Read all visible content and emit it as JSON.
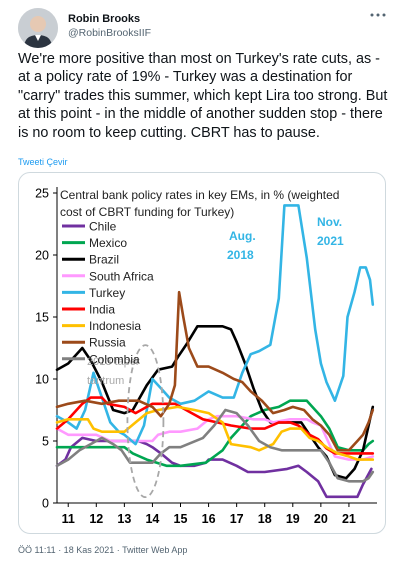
{
  "tweet": {
    "author": {
      "display_name": "Robin Brooks",
      "handle": "@RobinBrooksIIF"
    },
    "text": "We're more positive than most on Turkey's rate cuts, as - at a policy rate of 19% - Turkey was a destination for \"carry\" trades this summer, which kept Lira too strong. But at this point - in the middle of another sudden stop - there is no room to keep cutting. CBRT has to pause.",
    "translate_label": "Tweeti Çevir",
    "timestamp": "ÖÖ 11:11 · 18 Kas 2021 · Twitter Web App"
  },
  "colors": {
    "link": "#1d9bf0",
    "text": "#0f1419",
    "muted": "#536471",
    "border": "#cfd9de"
  },
  "chart_data": {
    "type": "line",
    "title": "Central bank policy rates in key EMs, in % (weighted cost of CBRT funding for Turkey)",
    "title_lines": [
      "Central bank policy rates in key EMs, in % (weighted",
      "cost of CBRT funding for Turkey)"
    ],
    "xlim": [
      2010.6,
      2022.0
    ],
    "ylim": [
      0,
      25
    ],
    "x_ticks": [
      {
        "v": 2011,
        "label": "11"
      },
      {
        "v": 2012,
        "label": "12"
      },
      {
        "v": 2013,
        "label": "13"
      },
      {
        "v": 2014,
        "label": "14"
      },
      {
        "v": 2015,
        "label": "15"
      },
      {
        "v": 2016,
        "label": "16"
      },
      {
        "v": 2017,
        "label": "17"
      },
      {
        "v": 2018,
        "label": "18"
      },
      {
        "v": 2019,
        "label": "19"
      },
      {
        "v": 2020,
        "label": "20"
      },
      {
        "v": 2021,
        "label": "21"
      }
    ],
    "y_ticks": [
      {
        "v": 0,
        "label": "0"
      },
      {
        "v": 5,
        "label": "5"
      },
      {
        "v": 10,
        "label": "10"
      },
      {
        "v": 15,
        "label": "15"
      },
      {
        "v": 20,
        "label": "20"
      },
      {
        "v": 25,
        "label": "25"
      }
    ],
    "grid": false,
    "legend_position": "top-left",
    "series": [
      {
        "name": "Chile",
        "color": "#7030a0",
        "points": [
          [
            2010.6,
            3.0
          ],
          [
            2010.9,
            3.5
          ],
          [
            2011.1,
            4.5
          ],
          [
            2011.5,
            5.25
          ],
          [
            2012.0,
            5.0
          ],
          [
            2012.5,
            5.0
          ],
          [
            2013.0,
            5.0
          ],
          [
            2013.5,
            5.0
          ],
          [
            2013.8,
            4.75
          ],
          [
            2014.0,
            4.5
          ],
          [
            2014.3,
            4.0
          ],
          [
            2014.7,
            3.25
          ],
          [
            2015.0,
            3.0
          ],
          [
            2015.5,
            3.0
          ],
          [
            2015.9,
            3.25
          ],
          [
            2016.0,
            3.5
          ],
          [
            2016.5,
            3.5
          ],
          [
            2017.0,
            3.0
          ],
          [
            2017.4,
            2.5
          ],
          [
            2018.0,
            2.5
          ],
          [
            2018.8,
            2.75
          ],
          [
            2019.2,
            3.0
          ],
          [
            2019.5,
            2.5
          ],
          [
            2019.9,
            1.75
          ],
          [
            2020.2,
            0.5
          ],
          [
            2020.5,
            0.5
          ],
          [
            2021.0,
            0.5
          ],
          [
            2021.3,
            0.5
          ],
          [
            2021.5,
            1.5
          ],
          [
            2021.8,
            2.75
          ]
        ]
      },
      {
        "name": "Mexico",
        "color": "#00a651",
        "points": [
          [
            2010.6,
            4.5
          ],
          [
            2011.0,
            4.5
          ],
          [
            2012.0,
            4.5
          ],
          [
            2013.0,
            4.5
          ],
          [
            2013.3,
            4.0
          ],
          [
            2013.8,
            3.5
          ],
          [
            2014.5,
            3.0
          ],
          [
            2015.0,
            3.0
          ],
          [
            2015.9,
            3.25
          ],
          [
            2016.2,
            3.75
          ],
          [
            2016.5,
            4.25
          ],
          [
            2016.8,
            5.25
          ],
          [
            2017.0,
            5.75
          ],
          [
            2017.5,
            7.0
          ],
          [
            2018.0,
            7.5
          ],
          [
            2018.5,
            7.75
          ],
          [
            2018.9,
            8.25
          ],
          [
            2019.5,
            8.25
          ],
          [
            2019.8,
            7.5
          ],
          [
            2020.0,
            7.0
          ],
          [
            2020.3,
            6.0
          ],
          [
            2020.6,
            4.5
          ],
          [
            2021.0,
            4.25
          ],
          [
            2021.5,
            4.25
          ],
          [
            2021.7,
            4.75
          ],
          [
            2021.85,
            5.0
          ]
        ]
      },
      {
        "name": "Brazil",
        "color": "#000000",
        "points": [
          [
            2010.6,
            10.75
          ],
          [
            2011.0,
            11.25
          ],
          [
            2011.5,
            12.5
          ],
          [
            2011.8,
            11.5
          ],
          [
            2012.2,
            9.75
          ],
          [
            2012.6,
            7.5
          ],
          [
            2013.0,
            7.25
          ],
          [
            2013.3,
            7.5
          ],
          [
            2013.8,
            9.5
          ],
          [
            2014.2,
            10.75
          ],
          [
            2014.7,
            11.0
          ],
          [
            2014.9,
            11.75
          ],
          [
            2015.2,
            12.75
          ],
          [
            2015.6,
            14.25
          ],
          [
            2016.0,
            14.25
          ],
          [
            2016.5,
            14.25
          ],
          [
            2016.8,
            14.0
          ],
          [
            2017.0,
            13.0
          ],
          [
            2017.3,
            11.25
          ],
          [
            2017.6,
            9.25
          ],
          [
            2017.9,
            7.5
          ],
          [
            2018.2,
            6.5
          ],
          [
            2018.8,
            6.5
          ],
          [
            2019.3,
            6.5
          ],
          [
            2019.6,
            5.5
          ],
          [
            2019.9,
            4.5
          ],
          [
            2020.2,
            3.75
          ],
          [
            2020.5,
            2.25
          ],
          [
            2020.9,
            2.0
          ],
          [
            2021.2,
            2.75
          ],
          [
            2021.5,
            4.25
          ],
          [
            2021.7,
            6.25
          ],
          [
            2021.85,
            7.75
          ]
        ]
      },
      {
        "name": "South Africa",
        "color": "#ff99ff",
        "points": [
          [
            2010.6,
            6.0
          ],
          [
            2011.0,
            5.5
          ],
          [
            2012.0,
            5.5
          ],
          [
            2012.5,
            5.0
          ],
          [
            2013.0,
            5.0
          ],
          [
            2014.0,
            5.0
          ],
          [
            2014.2,
            5.5
          ],
          [
            2014.6,
            5.75
          ],
          [
            2015.0,
            5.75
          ],
          [
            2015.6,
            6.0
          ],
          [
            2016.0,
            6.75
          ],
          [
            2016.3,
            7.0
          ],
          [
            2017.0,
            7.0
          ],
          [
            2017.6,
            6.75
          ],
          [
            2018.0,
            6.75
          ],
          [
            2018.3,
            6.5
          ],
          [
            2018.9,
            6.75
          ],
          [
            2019.5,
            6.75
          ],
          [
            2019.7,
            6.5
          ],
          [
            2020.0,
            6.25
          ],
          [
            2020.2,
            5.25
          ],
          [
            2020.5,
            3.75
          ],
          [
            2021.0,
            3.5
          ],
          [
            2021.5,
            3.5
          ],
          [
            2021.85,
            3.75
          ]
        ]
      },
      {
        "name": "Turkey",
        "color": "#33b5e5",
        "points": [
          [
            2010.6,
            7.0
          ],
          [
            2011.0,
            6.5
          ],
          [
            2011.3,
            6.0
          ],
          [
            2011.6,
            7.5
          ],
          [
            2011.9,
            10.5
          ],
          [
            2012.2,
            8.5
          ],
          [
            2012.5,
            6.5
          ],
          [
            2012.8,
            5.75
          ],
          [
            2013.0,
            5.5
          ],
          [
            2013.4,
            4.75
          ],
          [
            2013.7,
            6.25
          ],
          [
            2014.0,
            10.0
          ],
          [
            2014.3,
            9.25
          ],
          [
            2014.6,
            8.5
          ],
          [
            2015.0,
            8.0
          ],
          [
            2015.5,
            8.25
          ],
          [
            2016.0,
            9.0
          ],
          [
            2016.5,
            8.5
          ],
          [
            2016.9,
            8.5
          ],
          [
            2017.2,
            10.5
          ],
          [
            2017.5,
            12.0
          ],
          [
            2017.8,
            12.25
          ],
          [
            2018.2,
            12.75
          ],
          [
            2018.5,
            16.5
          ],
          [
            2018.7,
            24.0
          ],
          [
            2019.0,
            24.0
          ],
          [
            2019.2,
            24.0
          ],
          [
            2019.5,
            19.75
          ],
          [
            2019.8,
            14.0
          ],
          [
            2020.0,
            11.25
          ],
          [
            2020.2,
            9.75
          ],
          [
            2020.5,
            8.25
          ],
          [
            2020.8,
            10.25
          ],
          [
            2020.95,
            15.0
          ],
          [
            2021.2,
            17.0
          ],
          [
            2021.4,
            19.0
          ],
          [
            2021.6,
            19.0
          ],
          [
            2021.75,
            18.0
          ],
          [
            2021.85,
            16.0
          ]
        ]
      },
      {
        "name": "India",
        "color": "#ff0000",
        "points": [
          [
            2010.6,
            6.0
          ],
          [
            2011.0,
            6.75
          ],
          [
            2011.5,
            8.0
          ],
          [
            2011.8,
            8.5
          ],
          [
            2012.2,
            8.5
          ],
          [
            2012.4,
            8.0
          ],
          [
            2013.0,
            7.75
          ],
          [
            2013.4,
            7.25
          ],
          [
            2013.8,
            7.75
          ],
          [
            2014.0,
            8.0
          ],
          [
            2014.8,
            8.0
          ],
          [
            2015.0,
            7.75
          ],
          [
            2015.4,
            7.25
          ],
          [
            2015.8,
            6.75
          ],
          [
            2016.3,
            6.5
          ],
          [
            2016.8,
            6.25
          ],
          [
            2017.5,
            6.0
          ],
          [
            2018.0,
            6.0
          ],
          [
            2018.5,
            6.5
          ],
          [
            2018.9,
            6.5
          ],
          [
            2019.2,
            6.25
          ],
          [
            2019.6,
            5.5
          ],
          [
            2019.9,
            5.15
          ],
          [
            2020.2,
            4.4
          ],
          [
            2020.5,
            4.0
          ],
          [
            2021.0,
            4.0
          ],
          [
            2021.85,
            4.0
          ]
        ]
      },
      {
        "name": "Indonesia",
        "color": "#ffc000",
        "points": [
          [
            2010.6,
            6.5
          ],
          [
            2011.0,
            6.75
          ],
          [
            2011.7,
            6.75
          ],
          [
            2011.9,
            6.0
          ],
          [
            2012.2,
            5.75
          ],
          [
            2013.0,
            5.75
          ],
          [
            2013.4,
            6.5
          ],
          [
            2013.8,
            7.25
          ],
          [
            2014.2,
            7.5
          ],
          [
            2014.9,
            7.75
          ],
          [
            2015.5,
            7.5
          ],
          [
            2016.0,
            7.25
          ],
          [
            2016.5,
            6.5
          ],
          [
            2016.8,
            4.75
          ],
          [
            2017.5,
            4.5
          ],
          [
            2017.8,
            4.25
          ],
          [
            2018.3,
            4.75
          ],
          [
            2018.6,
            5.75
          ],
          [
            2018.9,
            6.0
          ],
          [
            2019.3,
            6.0
          ],
          [
            2019.6,
            5.25
          ],
          [
            2019.9,
            5.0
          ],
          [
            2020.2,
            4.5
          ],
          [
            2020.6,
            4.0
          ],
          [
            2021.0,
            3.75
          ],
          [
            2021.3,
            3.5
          ],
          [
            2021.85,
            3.5
          ]
        ]
      },
      {
        "name": "Russia",
        "color": "#9c4a1a",
        "points": [
          [
            2010.6,
            7.75
          ],
          [
            2011.0,
            8.0
          ],
          [
            2011.6,
            8.25
          ],
          [
            2012.2,
            8.0
          ],
          [
            2012.8,
            8.25
          ],
          [
            2013.5,
            8.25
          ],
          [
            2014.0,
            7.75
          ],
          [
            2014.3,
            7.0
          ],
          [
            2014.6,
            8.0
          ],
          [
            2014.8,
            9.5
          ],
          [
            2014.95,
            17.0
          ],
          [
            2015.1,
            15.0
          ],
          [
            2015.3,
            12.5
          ],
          [
            2015.6,
            11.0
          ],
          [
            2016.0,
            11.0
          ],
          [
            2016.5,
            10.5
          ],
          [
            2016.9,
            10.0
          ],
          [
            2017.2,
            9.75
          ],
          [
            2017.5,
            9.0
          ],
          [
            2017.9,
            8.25
          ],
          [
            2018.3,
            7.25
          ],
          [
            2018.7,
            7.5
          ],
          [
            2019.0,
            7.75
          ],
          [
            2019.4,
            7.5
          ],
          [
            2019.7,
            6.75
          ],
          [
            2020.0,
            6.25
          ],
          [
            2020.3,
            5.5
          ],
          [
            2020.6,
            4.25
          ],
          [
            2021.0,
            4.25
          ],
          [
            2021.3,
            5.0
          ],
          [
            2021.5,
            5.5
          ],
          [
            2021.7,
            6.5
          ],
          [
            2021.85,
            7.5
          ]
        ]
      },
      {
        "name": "Colombia",
        "color": "#808080",
        "points": [
          [
            2010.6,
            3.0
          ],
          [
            2011.0,
            3.5
          ],
          [
            2011.4,
            4.25
          ],
          [
            2011.8,
            4.75
          ],
          [
            2012.2,
            5.25
          ],
          [
            2012.6,
            4.75
          ],
          [
            2012.9,
            4.25
          ],
          [
            2013.2,
            3.25
          ],
          [
            2014.0,
            3.25
          ],
          [
            2014.3,
            4.0
          ],
          [
            2014.6,
            4.5
          ],
          [
            2015.0,
            4.5
          ],
          [
            2015.8,
            5.25
          ],
          [
            2016.2,
            6.25
          ],
          [
            2016.6,
            7.5
          ],
          [
            2017.0,
            7.25
          ],
          [
            2017.4,
            6.25
          ],
          [
            2017.8,
            5.0
          ],
          [
            2018.2,
            4.5
          ],
          [
            2018.6,
            4.25
          ],
          [
            2019.5,
            4.25
          ],
          [
            2020.0,
            4.25
          ],
          [
            2020.3,
            3.25
          ],
          [
            2020.6,
            2.0
          ],
          [
            2021.0,
            1.75
          ],
          [
            2021.5,
            1.75
          ],
          [
            2021.7,
            2.0
          ],
          [
            2021.85,
            2.5
          ]
        ]
      }
    ],
    "annotations": [
      {
        "text": "2013 taper",
        "color": "#a8a8a8"
      },
      {
        "text": "tantrum",
        "color": "#a8a8a8"
      },
      {
        "text": "Aug.",
        "color": "#33b5e5"
      },
      {
        "text": "2018",
        "color": "#33b5e5"
      },
      {
        "text": "Nov.",
        "color": "#33b5e5"
      },
      {
        "text": "2021",
        "color": "#33b5e5"
      }
    ]
  }
}
